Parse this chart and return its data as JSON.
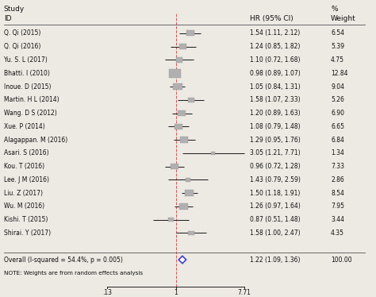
{
  "studies": [
    {
      "id": "Q. Qi (2015)",
      "hr": 1.54,
      "lo": 1.11,
      "hi": 2.12,
      "weight": 6.54
    },
    {
      "id": "Q. Qi (2016)",
      "hr": 1.24,
      "lo": 0.85,
      "hi": 1.82,
      "weight": 5.39
    },
    {
      "id": "Yu. S. L (2017)",
      "hr": 1.1,
      "lo": 0.72,
      "hi": 1.68,
      "weight": 4.75
    },
    {
      "id": "Bhatti. I (2010)",
      "hr": 0.98,
      "lo": 0.89,
      "hi": 1.07,
      "weight": 12.84
    },
    {
      "id": "Inoue. D (2015)",
      "hr": 1.05,
      "lo": 0.84,
      "hi": 1.31,
      "weight": 9.04
    },
    {
      "id": "Martin. H L (2014)",
      "hr": 1.58,
      "lo": 1.07,
      "hi": 2.33,
      "weight": 5.26
    },
    {
      "id": "Wang. D S (2012)",
      "hr": 1.2,
      "lo": 0.89,
      "hi": 1.63,
      "weight": 6.9
    },
    {
      "id": "Xue. P (2014)",
      "hr": 1.08,
      "lo": 0.79,
      "hi": 1.48,
      "weight": 6.65
    },
    {
      "id": "Alagappan. M (2016)",
      "hr": 1.29,
      "lo": 0.95,
      "hi": 1.76,
      "weight": 6.84
    },
    {
      "id": "Asari. S (2016)",
      "hr": 3.05,
      "lo": 1.21,
      "hi": 7.71,
      "weight": 1.34
    },
    {
      "id": "Kou. T (2016)",
      "hr": 0.96,
      "lo": 0.72,
      "hi": 1.28,
      "weight": 7.33
    },
    {
      "id": "Lee. J M (2016)",
      "hr": 1.43,
      "lo": 0.79,
      "hi": 2.59,
      "weight": 2.86
    },
    {
      "id": "Liu. Z (2017)",
      "hr": 1.5,
      "lo": 1.18,
      "hi": 1.91,
      "weight": 8.54
    },
    {
      "id": "Wu. M (2016)",
      "hr": 1.26,
      "lo": 0.97,
      "hi": 1.64,
      "weight": 7.95
    },
    {
      "id": "Kishi. T (2015)",
      "hr": 0.87,
      "lo": 0.51,
      "hi": 1.48,
      "weight": 3.44
    },
    {
      "id": "Shirai. Y (2017)",
      "hr": 1.58,
      "lo": 1.0,
      "hi": 2.47,
      "weight": 4.35
    }
  ],
  "overall": {
    "id": "Overall (I-squared = 54.4%, p = 0.005)",
    "hr": 1.22,
    "lo": 1.09,
    "hi": 1.36,
    "weight": 100.0
  },
  "note": "NOTE: Weights are from random effects analysis",
  "xmin": 0.13,
  "xmax": 7.71,
  "null_line": 1.0,
  "xticklabels": [
    ".13",
    "1",
    "7.71"
  ],
  "col_hr_label": "HR (95% CI)",
  "col_weight_label": "Weight",
  "col_study_label": "Study",
  "col_id_label": "ID",
  "col_pct_label": "%",
  "bg_color": "#ede9e3",
  "box_color": "#b0b0b0",
  "diamond_facecolor": "#ffffff",
  "diamond_edgecolor": "#4040cc",
  "line_color": "#222222",
  "null_line_color": "#cc3333",
  "text_color": "#111111",
  "sep_line_color": "#555555"
}
